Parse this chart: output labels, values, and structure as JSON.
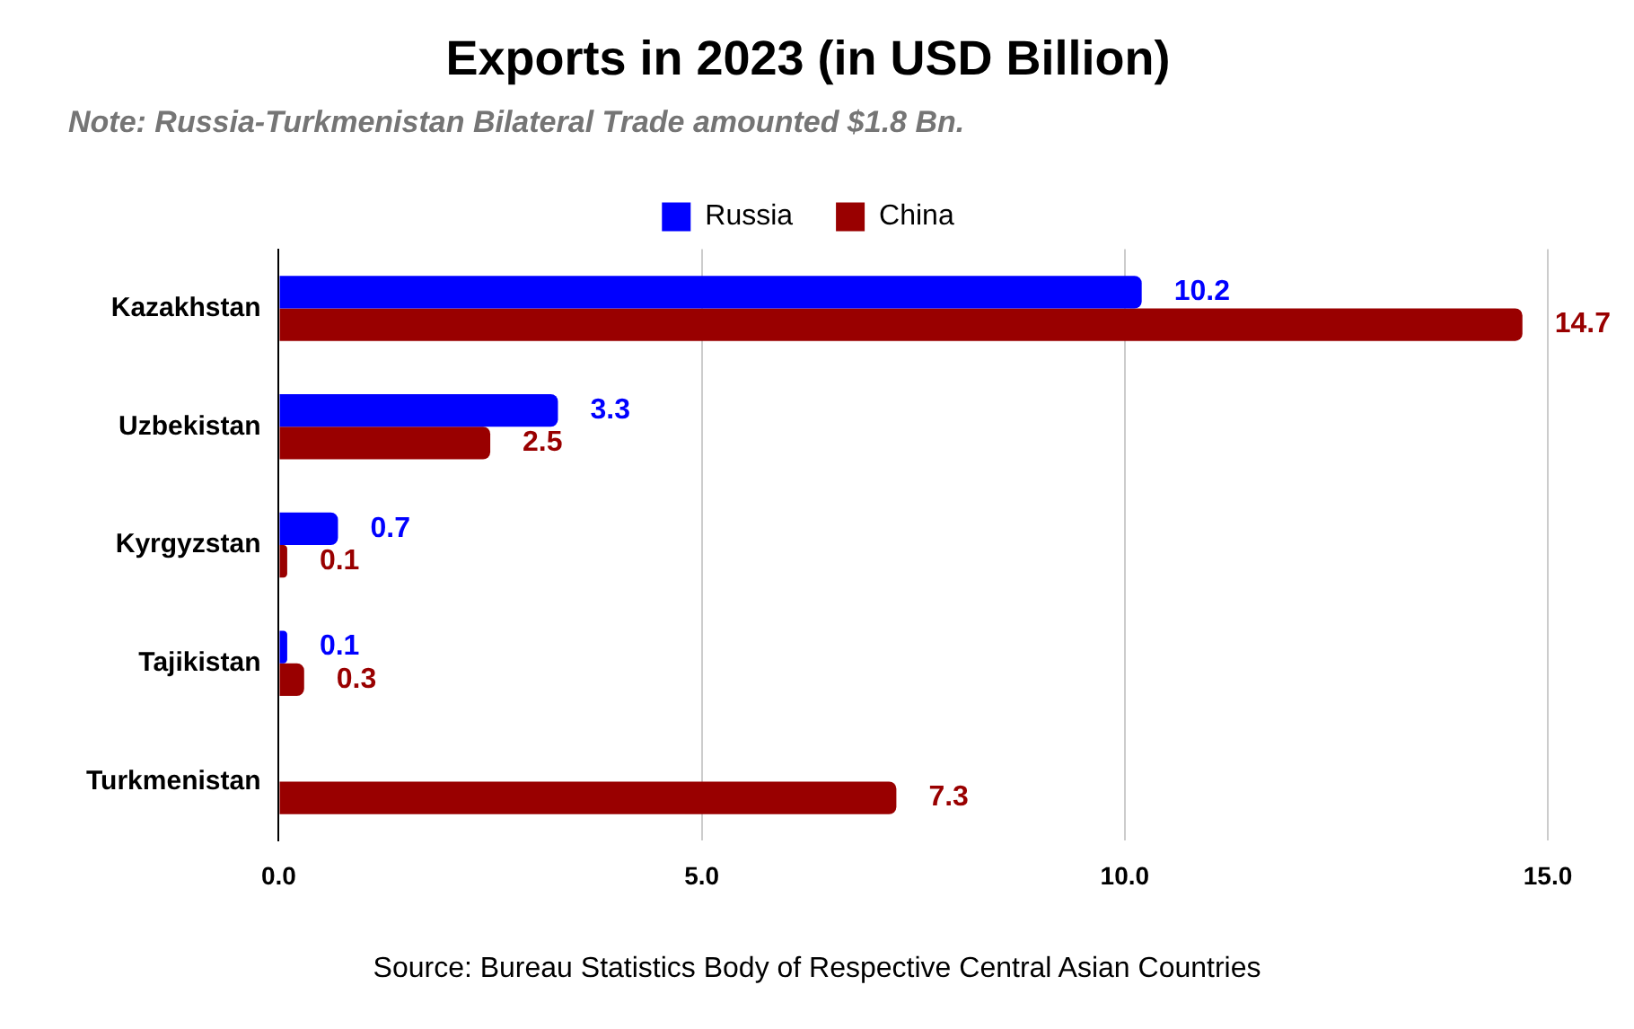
{
  "chart_data": {
    "type": "bar",
    "orientation": "horizontal",
    "title": "Exports in 2023 (in USD Billion)",
    "subtitle": "Note: Russia-Turkmenistan Bilateral Trade amounted $1.8 Bn.",
    "categories": [
      "Kazakhstan",
      "Uzbekistan",
      "Kyrgyzstan",
      "Tajikistan",
      "Turkmenistan"
    ],
    "series": [
      {
        "name": "Russia",
        "color": "#0000ff",
        "values": [
          10.2,
          3.3,
          0.7,
          0.1,
          null
        ]
      },
      {
        "name": "China",
        "color": "#990000",
        "values": [
          14.7,
          2.5,
          0.1,
          0.3,
          7.3
        ]
      }
    ],
    "xlim": [
      0,
      15
    ],
    "xticks": [
      {
        "value": 0,
        "label": "0.0"
      },
      {
        "value": 5,
        "label": "5.0"
      },
      {
        "value": 10,
        "label": "10.0"
      },
      {
        "value": 15,
        "label": "15.0"
      }
    ],
    "grid": "x",
    "legend": "top",
    "data_labels": true,
    "annotations": [
      "Source: Bureau Statistics Body of Respective Central Asian Countries"
    ]
  }
}
